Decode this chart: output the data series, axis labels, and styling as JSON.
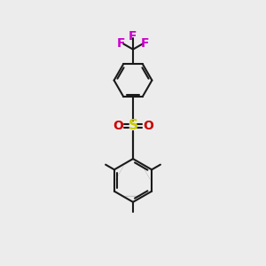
{
  "background_color": "#ececec",
  "bond_color": "#1a1a1a",
  "bond_width": 1.5,
  "sulfur_color": "#cccc00",
  "oxygen_color": "#cc0000",
  "fluorine_color": "#cc00cc",
  "font_size_F": 10,
  "font_size_S": 11,
  "font_size_O": 10,
  "fig_width": 3.0,
  "fig_height": 3.0,
  "dpi": 100,
  "xlim": [
    0,
    6
  ],
  "ylim": [
    0,
    10
  ]
}
